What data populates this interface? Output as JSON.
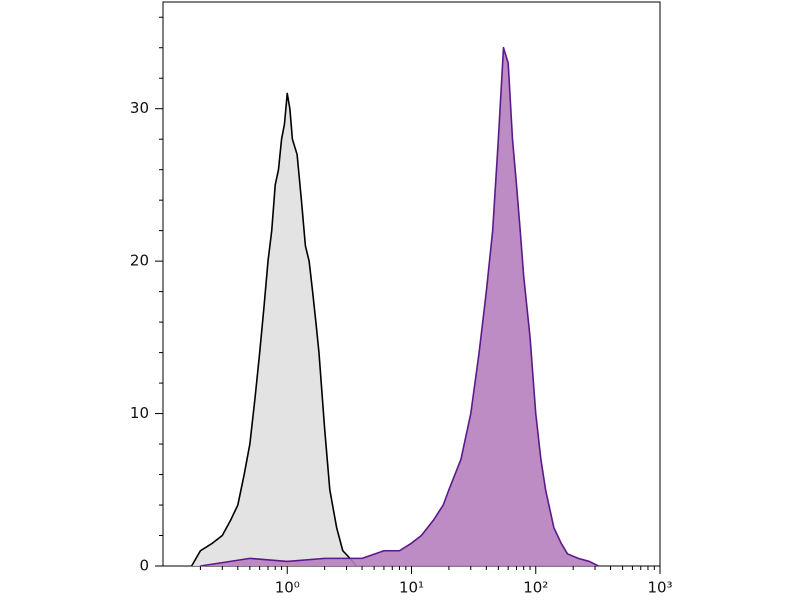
{
  "chart_data": {
    "type": "area",
    "xscale": "log",
    "xlim": [
      0.1,
      1000
    ],
    "xticks": [
      {
        "value": 1,
        "label": "10⁰"
      },
      {
        "value": 10,
        "label": "10¹"
      },
      {
        "value": 100,
        "label": "10²"
      },
      {
        "value": 1000,
        "label": "10³"
      }
    ],
    "xminorticks": [
      0.2,
      0.3,
      0.4,
      0.5,
      0.6,
      0.7,
      0.8,
      0.9,
      2,
      3,
      4,
      5,
      6,
      7,
      8,
      9,
      20,
      30,
      40,
      50,
      60,
      70,
      80,
      90,
      200,
      300,
      400,
      500,
      600,
      700,
      800,
      900
    ],
    "ylim": [
      0,
      37
    ],
    "yticks": [
      0,
      10,
      20,
      30
    ],
    "yminorticks": [
      2,
      4,
      6,
      8,
      12,
      14,
      16,
      18,
      22,
      24,
      26,
      28,
      32,
      34,
      36
    ],
    "series": [
      {
        "color": "#000000",
        "fill": "#e0e0e0",
        "x": [
          0.17,
          0.2,
          0.25,
          0.3,
          0.35,
          0.4,
          0.45,
          0.5,
          0.55,
          0.6,
          0.65,
          0.7,
          0.75,
          0.8,
          0.85,
          0.9,
          0.95,
          1.0,
          1.05,
          1.1,
          1.2,
          1.3,
          1.4,
          1.5,
          1.6,
          1.7,
          1.8,
          2.0,
          2.2,
          2.5,
          2.8,
          3.2,
          3.6
        ],
        "values": [
          0,
          1,
          1.5,
          2,
          3,
          4,
          6,
          8,
          11,
          14,
          17,
          20,
          22,
          25,
          26,
          28,
          29,
          31,
          30,
          28,
          27,
          24,
          21,
          20,
          18,
          16,
          14,
          9,
          5,
          2.5,
          1,
          0.5,
          0
        ]
      },
      {
        "color": "#5b1a8a",
        "fill": "#b77fbf",
        "x": [
          0.2,
          0.5,
          1,
          2,
          4,
          6,
          8,
          10,
          12,
          15,
          18,
          20,
          25,
          30,
          35,
          40,
          45,
          50,
          55,
          60,
          65,
          70,
          75,
          80,
          90,
          100,
          110,
          120,
          140,
          160,
          180,
          220,
          270,
          320
        ],
        "values": [
          0,
          0.5,
          0.3,
          0.5,
          0.5,
          1,
          1,
          1.5,
          2,
          3,
          4,
          5,
          7,
          10,
          14,
          18,
          22,
          28,
          34,
          33,
          28,
          25,
          22,
          19,
          15,
          10,
          7,
          5,
          2.5,
          1.5,
          0.8,
          0.5,
          0.3,
          0
        ]
      }
    ]
  }
}
